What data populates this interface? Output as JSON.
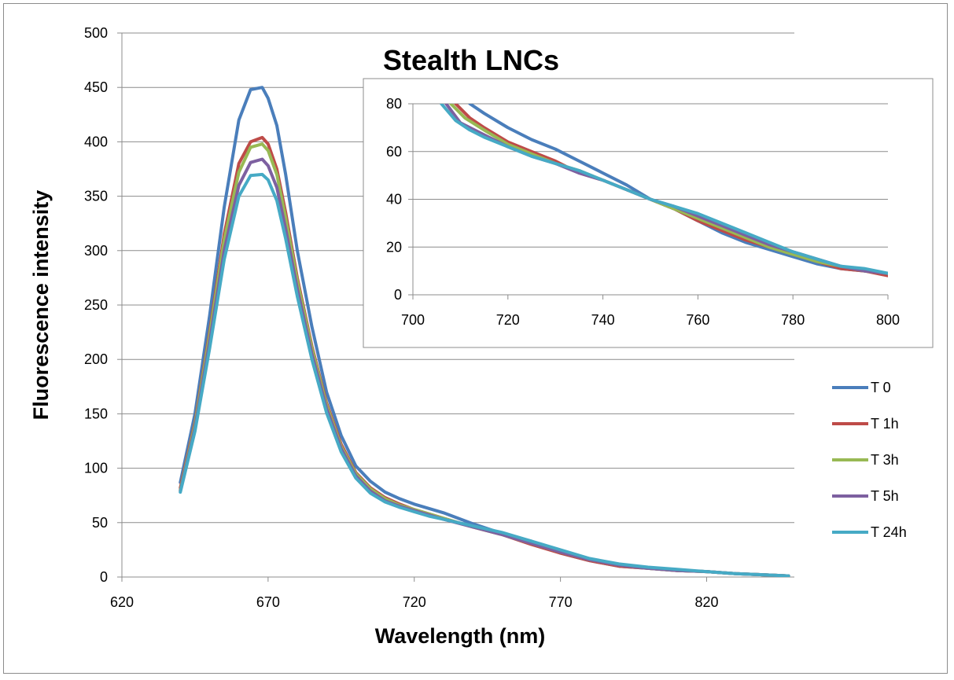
{
  "chart_data": [
    {
      "type": "line",
      "title": "Stealth LNCs",
      "xlabel": "Wavelength (nm)",
      "ylabel": "Fluorescence intensity",
      "xlim": [
        620,
        850
      ],
      "ylim": [
        0,
        500
      ],
      "x_ticks": [
        "620",
        "670",
        "720",
        "770",
        "820"
      ],
      "y_ticks": [
        "0",
        "50",
        "100",
        "150",
        "200",
        "250",
        "300",
        "350",
        "400",
        "450",
        "500"
      ],
      "grid": "horizontal",
      "legend_position": "right",
      "series": [
        {
          "name": "T 0",
          "color": "#4a7ebb",
          "x": [
            640,
            645,
            650,
            655,
            660,
            664,
            668,
            670,
            673,
            676,
            680,
            685,
            690,
            695,
            700,
            705,
            710,
            715,
            720,
            725,
            730,
            740,
            750,
            760,
            770,
            780,
            790,
            800,
            810,
            820,
            830,
            840,
            848
          ],
          "y": [
            87,
            150,
            240,
            340,
            420,
            448,
            450,
            440,
            415,
            370,
            300,
            230,
            170,
            130,
            102,
            88,
            78,
            72,
            67,
            63,
            59,
            49,
            40,
            33,
            22,
            15,
            10,
            8,
            6,
            5,
            3,
            2,
            1
          ]
        },
        {
          "name": "T 1h",
          "color": "#be4b48",
          "x": [
            640,
            645,
            650,
            655,
            660,
            664,
            668,
            670,
            673,
            676,
            680,
            685,
            690,
            695,
            700,
            705,
            710,
            715,
            720,
            725,
            730,
            740,
            750,
            760,
            770,
            780,
            790,
            800,
            810,
            820,
            830,
            840,
            848
          ],
          "y": [
            82,
            142,
            225,
            315,
            380,
            400,
            404,
            398,
            375,
            335,
            275,
            212,
            160,
            122,
            96,
            82,
            73,
            67,
            62,
            58,
            54,
            46,
            39,
            30,
            22,
            15,
            10,
            8,
            6,
            5,
            3,
            2,
            1
          ]
        },
        {
          "name": "T 3h",
          "color": "#98b954",
          "x": [
            640,
            645,
            650,
            655,
            660,
            664,
            668,
            670,
            673,
            676,
            680,
            685,
            690,
            695,
            700,
            705,
            710,
            715,
            720,
            725,
            730,
            740,
            750,
            760,
            770,
            780,
            790,
            800,
            810,
            820,
            830,
            840,
            848
          ],
          "y": [
            80,
            140,
            222,
            310,
            372,
            395,
            398,
            392,
            370,
            330,
            272,
            210,
            158,
            120,
            95,
            81,
            72,
            66,
            62,
            58,
            54,
            46,
            39,
            31,
            23,
            16,
            11,
            8,
            6,
            5,
            3,
            2,
            1
          ]
        },
        {
          "name": "T 5h",
          "color": "#7d60a0",
          "x": [
            640,
            645,
            650,
            655,
            660,
            664,
            668,
            670,
            673,
            676,
            680,
            685,
            690,
            695,
            700,
            705,
            710,
            715,
            720,
            725,
            730,
            740,
            750,
            760,
            770,
            780,
            790,
            800,
            810,
            820,
            830,
            840,
            848
          ],
          "y": [
            79,
            137,
            216,
            300,
            360,
            381,
            384,
            378,
            358,
            320,
            265,
            205,
            155,
            118,
            93,
            79,
            70,
            65,
            61,
            57,
            53,
            46,
            39,
            31,
            23,
            16,
            11,
            8,
            6,
            5,
            3,
            2,
            1
          ]
        },
        {
          "name": "T 24h",
          "color": "#46aac5",
          "x": [
            640,
            645,
            650,
            655,
            660,
            664,
            668,
            670,
            673,
            676,
            680,
            685,
            690,
            695,
            700,
            705,
            710,
            715,
            720,
            725,
            730,
            740,
            750,
            760,
            770,
            780,
            790,
            800,
            810,
            820,
            830,
            840,
            848
          ],
          "y": [
            78,
            134,
            210,
            292,
            350,
            369,
            370,
            365,
            346,
            311,
            258,
            200,
            151,
            115,
            91,
            77,
            69,
            64,
            60,
            56,
            53,
            47,
            41,
            33,
            25,
            17,
            12,
            9,
            7,
            5,
            3,
            2,
            1
          ]
        }
      ]
    },
    {
      "type": "line",
      "title": "",
      "xlim": [
        700,
        800
      ],
      "ylim": [
        0,
        80
      ],
      "x_ticks": [
        "700",
        "720",
        "740",
        "760",
        "780",
        "800"
      ],
      "y_ticks": [
        "0",
        "20",
        "40",
        "60",
        "80"
      ],
      "grid": "horizontal",
      "series": [
        {
          "color": "#4a7ebb",
          "x": [
            712,
            715,
            720,
            725,
            730,
            735,
            740,
            745,
            750,
            755,
            760,
            765,
            770,
            775,
            780,
            785,
            790,
            795,
            800
          ],
          "y": [
            80,
            76,
            70,
            65,
            61,
            56,
            51,
            46,
            40,
            36,
            31,
            26,
            22,
            19,
            16,
            13,
            11,
            10,
            9
          ]
        },
        {
          "name": "T 1h",
          "color": "#be4b48",
          "x": [
            709,
            712,
            715,
            720,
            725,
            730,
            735,
            740,
            745,
            750,
            755,
            760,
            765,
            770,
            775,
            780,
            785,
            790,
            795,
            800
          ],
          "y": [
            80,
            74,
            70,
            64,
            60,
            56,
            51,
            48,
            44,
            40,
            36,
            31,
            27,
            23,
            20,
            17,
            14,
            11,
            10,
            8
          ]
        },
        {
          "name": "T 3h",
          "color": "#98b954",
          "x": [
            708,
            711,
            715,
            720,
            725,
            730,
            735,
            740,
            745,
            750,
            755,
            760,
            765,
            770,
            775,
            780,
            785,
            790,
            795,
            800
          ],
          "y": [
            80,
            74,
            69,
            63,
            59,
            55,
            52,
            48,
            44,
            40,
            36,
            32,
            28,
            24,
            20,
            17,
            14,
            12,
            10,
            9
          ]
        },
        {
          "name": "T 5h",
          "color": "#7d60a0",
          "x": [
            707,
            710,
            715,
            720,
            725,
            730,
            735,
            740,
            745,
            750,
            755,
            760,
            765,
            770,
            775,
            780,
            785,
            790,
            795,
            800
          ],
          "y": [
            80,
            72,
            67,
            62,
            58,
            55,
            51,
            48,
            44,
            40,
            37,
            33,
            29,
            25,
            21,
            18,
            15,
            12,
            10,
            9
          ]
        },
        {
          "name": "T 24h",
          "color": "#46aac5",
          "x": [
            706,
            709,
            712,
            715,
            720,
            725,
            730,
            735,
            740,
            745,
            750,
            755,
            760,
            765,
            770,
            775,
            780,
            785,
            790,
            795,
            800
          ],
          "y": [
            80,
            73,
            69,
            66,
            62,
            58,
            55,
            52,
            48,
            44,
            40,
            37,
            34,
            30,
            26,
            22,
            18,
            15,
            12,
            11,
            9
          ]
        }
      ]
    }
  ]
}
